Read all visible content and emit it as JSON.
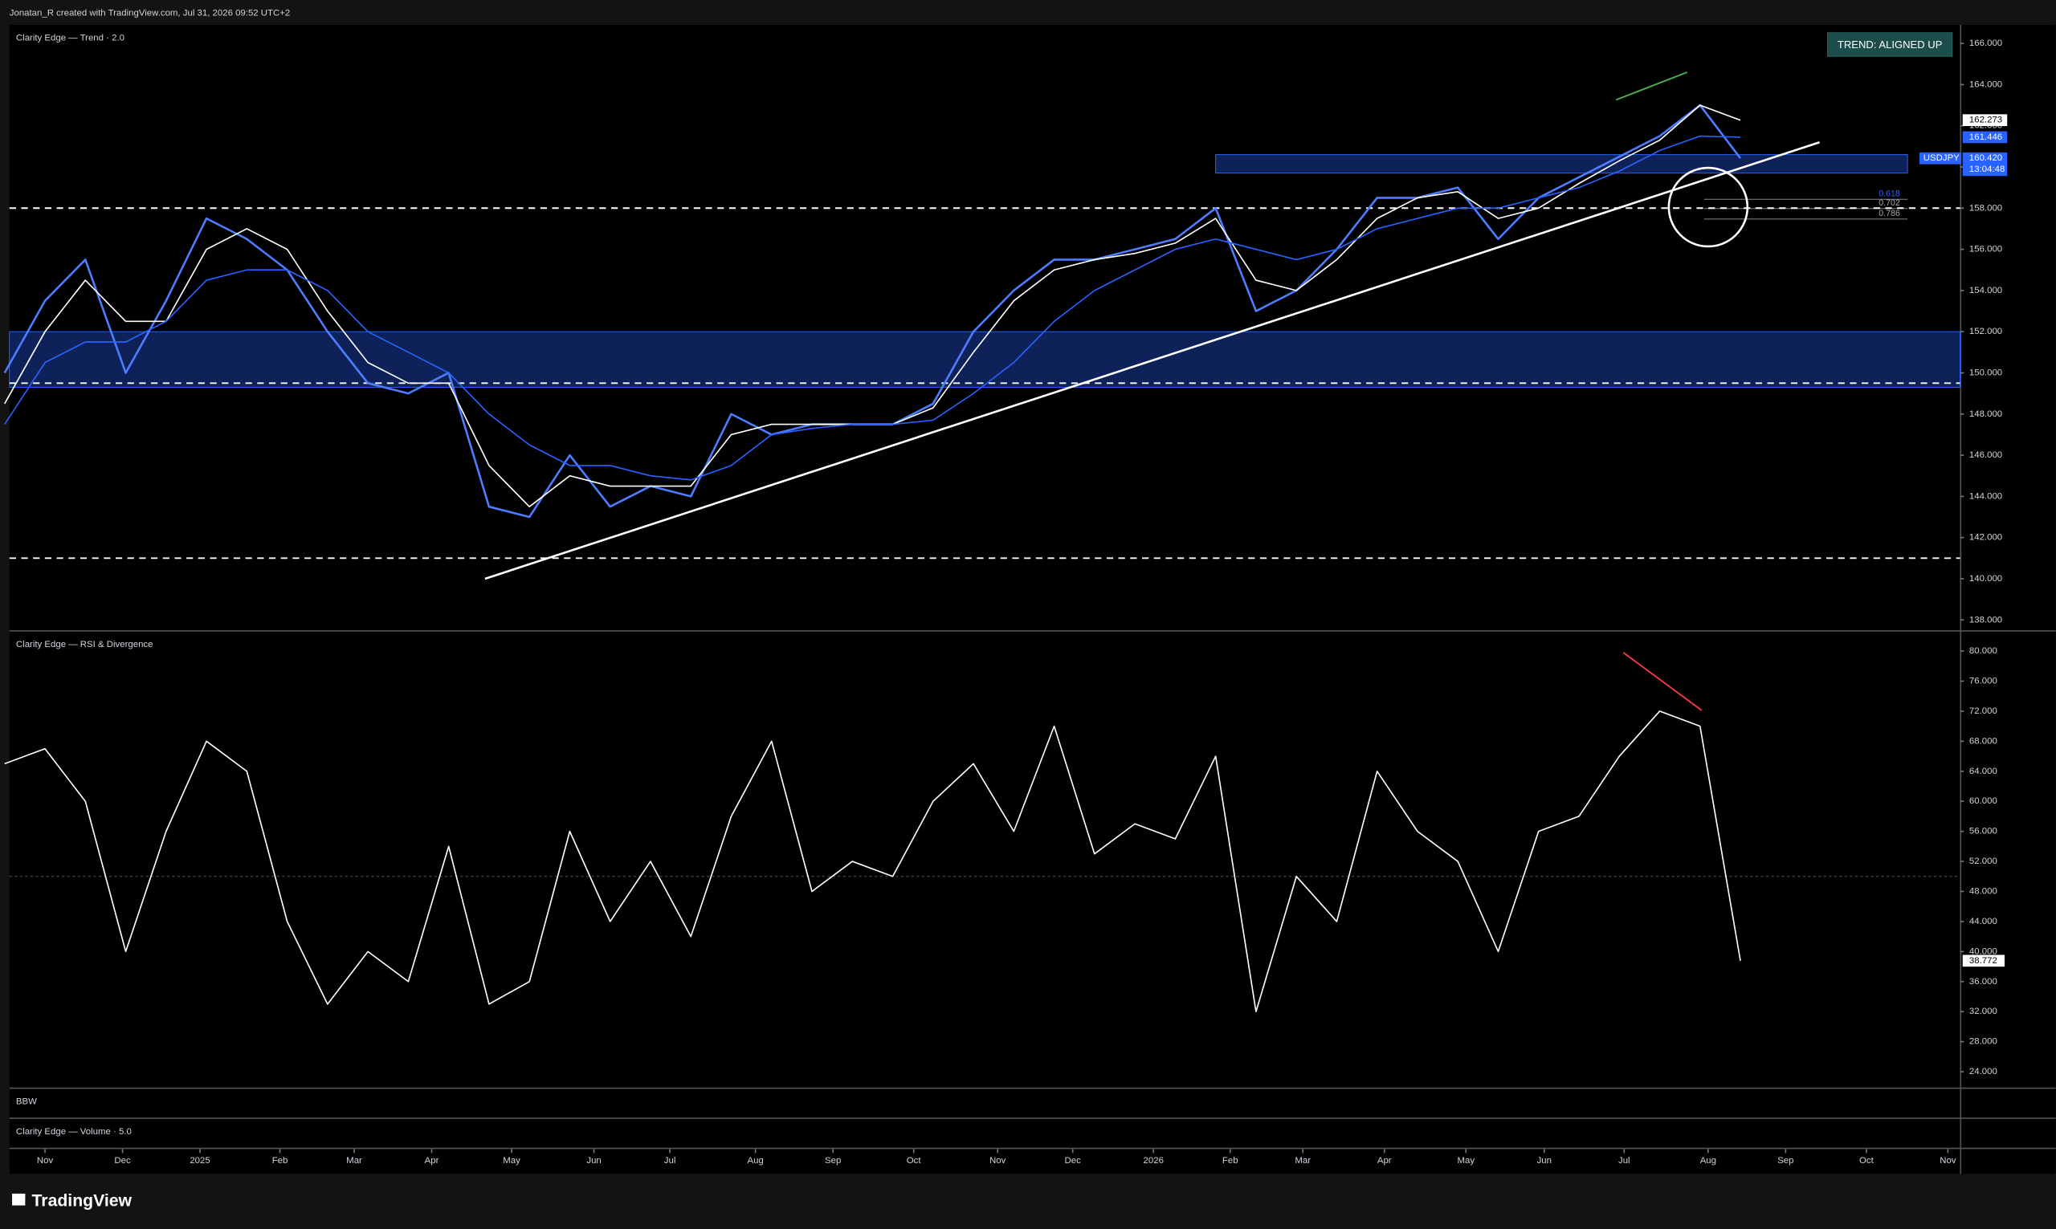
{
  "header": "Jonatan_R created with TradingView.com, Jul 31, 2026 09:52 UTC+2",
  "footer_logo": "TradingView",
  "panels": {
    "bbw": "BBW",
    "volume": "Clarity Edge — Volume · 5.0"
  },
  "chart_data": [
    {
      "type": "line",
      "title": "Clarity Edge — Trend · 2.0",
      "badge": "TREND: ALIGNED UP",
      "x": [
        -0.5,
        0,
        0.5,
        1,
        1.5,
        2,
        2.5,
        3,
        3.5,
        4,
        4.5,
        5,
        5.5,
        6,
        6.5,
        7,
        7.5,
        8,
        8.5,
        9,
        9.5,
        10,
        10.5,
        11,
        11.5,
        12,
        12.5,
        13,
        13.5,
        14,
        14.5,
        15,
        15.5,
        16,
        16.5,
        17,
        17.5,
        18,
        18.5,
        19,
        19.5,
        20,
        20.5,
        21
      ],
      "xlim": [
        -0.44,
        23.72
      ],
      "xticks": [
        {
          "value": 0,
          "label": "Nov"
        },
        {
          "value": 0.96,
          "label": "Dec"
        },
        {
          "value": 1.92,
          "label": "2025"
        },
        {
          "value": 2.91,
          "label": "Feb"
        },
        {
          "value": 3.83,
          "label": "Mar"
        },
        {
          "value": 4.79,
          "label": "Apr"
        },
        {
          "value": 5.78,
          "label": "May"
        },
        {
          "value": 6.8,
          "label": "Jun"
        },
        {
          "value": 7.74,
          "label": "Jul"
        },
        {
          "value": 8.8,
          "label": "Aug"
        },
        {
          "value": 9.76,
          "label": "Sep"
        },
        {
          "value": 10.76,
          "label": "Oct"
        },
        {
          "value": 11.8,
          "label": "Nov"
        },
        {
          "value": 12.73,
          "label": "Dec"
        },
        {
          "value": 13.73,
          "label": "2026"
        },
        {
          "value": 14.68,
          "label": "Feb"
        },
        {
          "value": 15.58,
          "label": "Mar"
        },
        {
          "value": 16.59,
          "label": "Apr"
        },
        {
          "value": 17.6,
          "label": "May"
        },
        {
          "value": 18.57,
          "label": "Jun"
        },
        {
          "value": 19.56,
          "label": "Jul"
        },
        {
          "value": 20.6,
          "label": "Aug"
        },
        {
          "value": 21.56,
          "label": "Sep"
        },
        {
          "value": 22.56,
          "label": "Oct"
        },
        {
          "value": 23.57,
          "label": "Nov"
        }
      ],
      "ylim": [
        137.5,
        166.9
      ],
      "yticks": [
        {
          "value": 138,
          "label": "138.000"
        },
        {
          "value": 140,
          "label": "140.000"
        },
        {
          "value": 142,
          "label": "142.000"
        },
        {
          "value": 144,
          "label": "144.000"
        },
        {
          "value": 146,
          "label": "146.000"
        },
        {
          "value": 148,
          "label": "148.000"
        },
        {
          "value": 150,
          "label": "150.000"
        },
        {
          "value": 152,
          "label": "152.000"
        },
        {
          "value": 154,
          "label": "154.000"
        },
        {
          "value": 156,
          "label": "156.000"
        },
        {
          "value": 158,
          "label": "158.000"
        },
        {
          "value": 160,
          "label": "160.000"
        },
        {
          "value": 162,
          "label": "162.000"
        },
        {
          "value": 164,
          "label": "164.000"
        },
        {
          "value": 166,
          "label": "166.000"
        }
      ],
      "series": [
        {
          "name": "USDJPY",
          "color": "#4d7cfe",
          "values": [
            150,
            153.5,
            155.5,
            150,
            153.5,
            157.5,
            156.5,
            155,
            152,
            149.5,
            149,
            150,
            143.5,
            143,
            146,
            143.5,
            144.5,
            144,
            148,
            147,
            147.5,
            147.5,
            147.5,
            148.5,
            152,
            154,
            155.5,
            155.5,
            156,
            156.5,
            158,
            153,
            154,
            156,
            158.5,
            158.5,
            159,
            156.5,
            158.5,
            159.5,
            160.5,
            161.5,
            163,
            160.42
          ]
        },
        {
          "color": "#ffffff",
          "values": [
            148.5,
            152,
            154.5,
            152.5,
            152.5,
            156,
            157,
            156,
            153,
            150.5,
            149.5,
            149.5,
            145.5,
            143.5,
            145,
            144.5,
            144.5,
            144.5,
            147,
            147.5,
            147.5,
            147.5,
            147.5,
            148.3,
            151,
            153.5,
            155,
            155.5,
            155.8,
            156.3,
            157.5,
            154.5,
            154,
            155.5,
            157.5,
            158.5,
            158.8,
            157.5,
            158,
            159.2,
            160.3,
            161.3,
            163,
            162.273
          ]
        },
        {
          "color": "#2962ff",
          "values": [
            147.5,
            150.5,
            151.5,
            151.5,
            152.5,
            154.5,
            155,
            155,
            154,
            152,
            151,
            150,
            148,
            146.5,
            145.5,
            145.5,
            145,
            144.8,
            145.5,
            147,
            147.3,
            147.5,
            147.5,
            147.7,
            149,
            150.5,
            152.5,
            154,
            155,
            156,
            156.5,
            156,
            155.5,
            156,
            157,
            157.5,
            158,
            158,
            158.5,
            159,
            159.8,
            160.8,
            161.5,
            161.446
          ]
        }
      ],
      "price_tags": [
        {
          "value": 162.273,
          "label": "162.273"
        },
        {
          "value": 161.446,
          "label": "161.446"
        },
        {
          "value": 160.42,
          "label": "160.420"
        }
      ],
      "countdown": "13:04:48",
      "levels": [
        158,
        149.5,
        141
      ],
      "zones": [
        {
          "y": [
            149.3,
            152
          ],
          "x": [
            -0.44,
            23.72
          ]
        },
        {
          "y": [
            159.7,
            160.6
          ],
          "x": [
            14.5,
            23.07
          ]
        }
      ],
      "trendline": {
        "x": [
          5.45,
          21.98
        ],
        "y": [
          140,
          161.2
        ]
      },
      "fib": {
        "x": [
          20.55,
          23.07
        ],
        "levels": [
          {
            "value": 158.43,
            "label": "0.618"
          },
          {
            "value": 157.98,
            "label": "0.702"
          },
          {
            "value": 157.47,
            "label": "0.786"
          }
        ]
      },
      "circle": {
        "x": 20.6,
        "y": 158.05
      },
      "divergence": {
        "x": [
          19.46,
          20.34
        ],
        "y": [
          163.26,
          164.6
        ],
        "color": "#4caf50"
      }
    },
    {
      "type": "line",
      "title": "Clarity Edge — RSI & Divergence",
      "x": [
        -0.5,
        0,
        0.5,
        1,
        1.5,
        2,
        2.5,
        3,
        3.5,
        4,
        4.5,
        5,
        5.5,
        6,
        6.5,
        7,
        7.5,
        8,
        8.5,
        9,
        9.5,
        10,
        10.5,
        11,
        11.5,
        12,
        12.5,
        13,
        13.5,
        14,
        14.5,
        15,
        15.5,
        16,
        16.5,
        17,
        17.5,
        18,
        18.5,
        19,
        19.5,
        20,
        20.5,
        21
      ],
      "xlim": [
        -0.44,
        23.72
      ],
      "ylim": [
        21.9,
        82.6
      ],
      "yticks": [
        {
          "value": 24,
          "label": "24.000"
        },
        {
          "value": 28,
          "label": "28.000"
        },
        {
          "value": 32,
          "label": "32.000"
        },
        {
          "value": 36,
          "label": "36.000"
        },
        {
          "value": 40,
          "label": "40.000"
        },
        {
          "value": 44,
          "label": "44.000"
        },
        {
          "value": 48,
          "label": "48.000"
        },
        {
          "value": 52,
          "label": "52.000"
        },
        {
          "value": 56,
          "label": "56.000"
        },
        {
          "value": 60,
          "label": "60.000"
        },
        {
          "value": 64,
          "label": "64.000"
        },
        {
          "value": 68,
          "label": "68.000"
        },
        {
          "value": 72,
          "label": "72.000"
        },
        {
          "value": 76,
          "label": "76.000"
        },
        {
          "value": 80,
          "label": "80.000"
        }
      ],
      "series": [
        {
          "color": "#ffffff",
          "values": [
            65,
            67,
            60,
            40,
            56,
            68,
            64,
            44,
            33,
            40,
            36,
            54,
            33,
            36,
            56,
            44,
            52,
            42,
            58,
            68,
            48,
            52,
            50,
            60,
            65,
            56,
            70,
            53,
            57,
            55,
            66,
            32,
            50,
            44,
            64,
            56,
            52,
            40,
            56,
            58,
            66,
            72,
            70,
            38.772
          ]
        }
      ],
      "value_tag": {
        "value": 38.772,
        "label": "38.772"
      },
      "midline": 50,
      "divergence": {
        "x": [
          19.55,
          20.52
        ],
        "y": [
          79.8,
          72.1
        ],
        "color": "#f23645"
      }
    }
  ]
}
